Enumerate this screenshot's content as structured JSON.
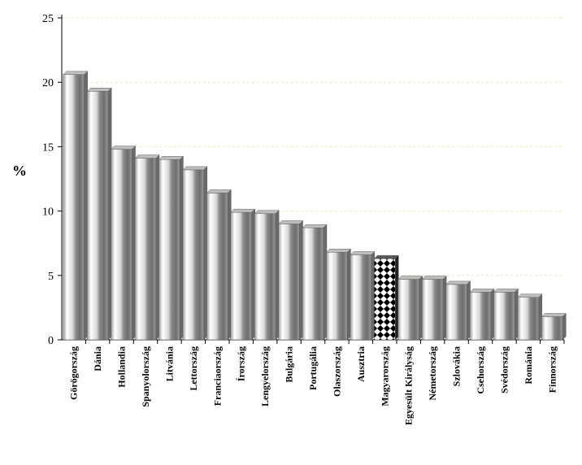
{
  "chart_data": {
    "type": "bar",
    "title": "",
    "xlabel": "",
    "ylabel": "%",
    "ylim": [
      0,
      25
    ],
    "yticks": [
      0,
      5,
      10,
      15,
      20,
      25
    ],
    "grid": true,
    "categories": [
      "Görögország",
      "Dánia",
      "Hollandia",
      "Spanyolország",
      "Litvánia",
      "Lettország",
      "Franciaország",
      "Írország",
      "Lengyelország",
      "Bulgária",
      "Portugália",
      "Olaszország",
      "Ausztria",
      "Magyarország",
      "Egyesült Királyság",
      "Németország",
      "Szlovákia",
      "Csehország",
      "Svédország",
      "Románia",
      "Finnország"
    ],
    "values": [
      20.6,
      19.3,
      14.8,
      14.1,
      14.0,
      13.2,
      11.4,
      9.9,
      9.8,
      9.0,
      8.7,
      6.8,
      6.6,
      6.3,
      4.7,
      4.7,
      4.3,
      3.7,
      3.7,
      3.3,
      1.8
    ],
    "highlight": "Magyarország",
    "colors": {
      "bar_light": "#f4f4f4",
      "bar_mid": "#c8c8c8",
      "bar_dark": "#7a7a7a",
      "grid": "#e6ecb8",
      "highlight": "#000000"
    }
  }
}
